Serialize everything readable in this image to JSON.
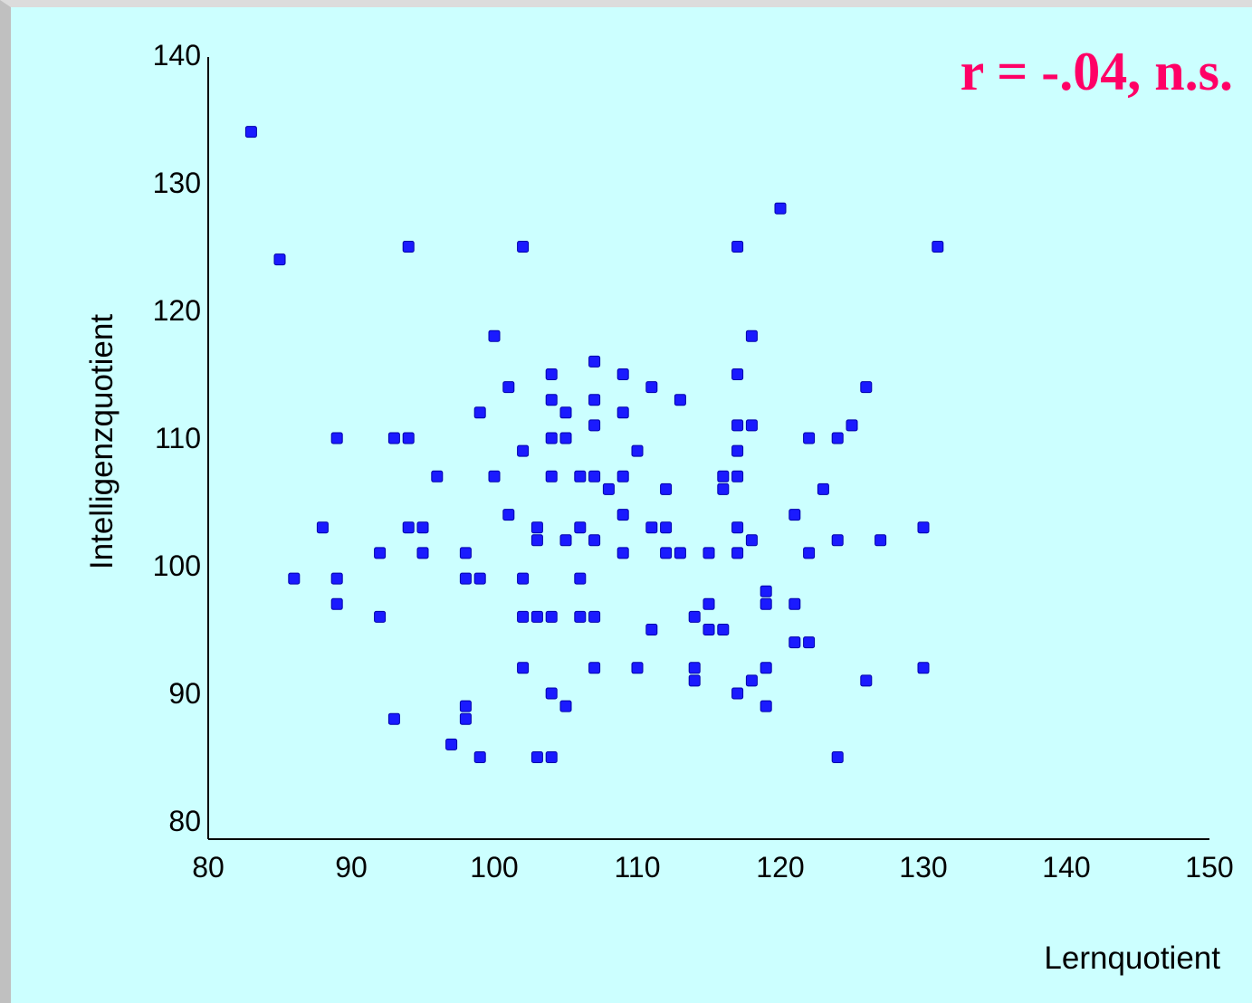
{
  "chart_data": {
    "type": "scatter",
    "xlabel": "Lernquotient",
    "ylabel": "Intelligenzquotient",
    "annotation": "r = -.04, n.s.",
    "xlim": [
      80,
      150
    ],
    "ylim": [
      80,
      140
    ],
    "x_ticks": [
      "80",
      "90",
      "100",
      "110",
      "120",
      "130",
      "140",
      "150"
    ],
    "y_ticks": [
      "80",
      "90",
      "100",
      "110",
      "120",
      "130",
      "140"
    ],
    "grid": false,
    "colors": {
      "points": "#1a1aff",
      "annotation": "#ff0066",
      "axes": "#000000",
      "background": "#ccffff"
    },
    "points": [
      [
        83,
        134
      ],
      [
        85,
        124
      ],
      [
        86,
        99
      ],
      [
        88,
        103
      ],
      [
        89,
        110
      ],
      [
        89,
        99
      ],
      [
        89,
        97
      ],
      [
        92,
        101
      ],
      [
        92,
        96
      ],
      [
        93,
        110
      ],
      [
        93,
        88
      ],
      [
        94,
        125
      ],
      [
        94,
        110
      ],
      [
        94,
        103
      ],
      [
        95,
        103
      ],
      [
        95,
        101
      ],
      [
        96,
        107
      ],
      [
        97,
        86
      ],
      [
        98,
        101
      ],
      [
        98,
        99
      ],
      [
        98,
        89
      ],
      [
        98,
        88
      ],
      [
        99,
        112
      ],
      [
        99,
        99
      ],
      [
        99,
        85
      ],
      [
        100,
        118
      ],
      [
        100,
        107
      ],
      [
        101,
        114
      ],
      [
        101,
        104
      ],
      [
        102,
        125
      ],
      [
        102,
        109
      ],
      [
        102,
        99
      ],
      [
        102,
        96
      ],
      [
        102,
        92
      ],
      [
        103,
        103
      ],
      [
        103,
        102
      ],
      [
        103,
        96
      ],
      [
        103,
        85
      ],
      [
        104,
        115
      ],
      [
        104,
        113
      ],
      [
        104,
        110
      ],
      [
        104,
        107
      ],
      [
        104,
        96
      ],
      [
        104,
        90
      ],
      [
        104,
        85
      ],
      [
        105,
        112
      ],
      [
        105,
        110
      ],
      [
        105,
        102
      ],
      [
        105,
        89
      ],
      [
        106,
        107
      ],
      [
        106,
        103
      ],
      [
        106,
        99
      ],
      [
        106,
        96
      ],
      [
        107,
        116
      ],
      [
        107,
        113
      ],
      [
        107,
        111
      ],
      [
        107,
        107
      ],
      [
        107,
        102
      ],
      [
        107,
        96
      ],
      [
        107,
        92
      ],
      [
        108,
        106
      ],
      [
        109,
        115
      ],
      [
        109,
        112
      ],
      [
        109,
        107
      ],
      [
        109,
        104
      ],
      [
        109,
        101
      ],
      [
        110,
        109
      ],
      [
        110,
        92
      ],
      [
        111,
        114
      ],
      [
        111,
        103
      ],
      [
        111,
        95
      ],
      [
        112,
        106
      ],
      [
        112,
        103
      ],
      [
        112,
        101
      ],
      [
        113,
        113
      ],
      [
        113,
        101
      ],
      [
        114,
        96
      ],
      [
        114,
        92
      ],
      [
        114,
        91
      ],
      [
        115,
        101
      ],
      [
        115,
        97
      ],
      [
        115,
        95
      ],
      [
        116,
        107
      ],
      [
        116,
        106
      ],
      [
        116,
        95
      ],
      [
        117,
        125
      ],
      [
        117,
        115
      ],
      [
        117,
        111
      ],
      [
        117,
        109
      ],
      [
        117,
        107
      ],
      [
        117,
        103
      ],
      [
        117,
        101
      ],
      [
        117,
        90
      ],
      [
        118,
        118
      ],
      [
        118,
        111
      ],
      [
        118,
        102
      ],
      [
        118,
        91
      ],
      [
        119,
        98
      ],
      [
        119,
        97
      ],
      [
        119,
        92
      ],
      [
        119,
        89
      ],
      [
        120,
        128
      ],
      [
        121,
        104
      ],
      [
        121,
        97
      ],
      [
        121,
        94
      ],
      [
        122,
        110
      ],
      [
        122,
        101
      ],
      [
        122,
        94
      ],
      [
        123,
        106
      ],
      [
        124,
        110
      ],
      [
        124,
        102
      ],
      [
        124,
        85
      ],
      [
        125,
        111
      ],
      [
        126,
        114
      ],
      [
        126,
        91
      ],
      [
        127,
        102
      ],
      [
        130,
        103
      ],
      [
        130,
        92
      ],
      [
        131,
        125
      ]
    ]
  }
}
